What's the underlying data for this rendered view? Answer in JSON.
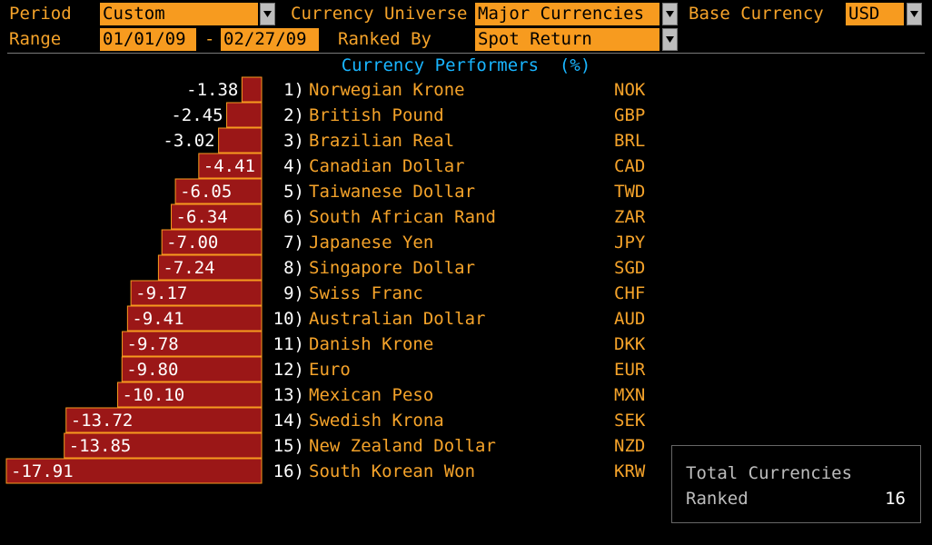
{
  "header": {
    "period_label": "Period",
    "period_value": "Custom",
    "universe_label": "Currency Universe",
    "universe_value": "Major Currencies",
    "base_label": "Base Currency",
    "base_value": "USD",
    "range_label": "Range",
    "range_start": "01/01/09",
    "range_sep": "-",
    "range_end": "02/27/09",
    "ranked_label": "Ranked By",
    "ranked_value": "Spot Return"
  },
  "chart_title": "Currency Performers  (%)",
  "colors": {
    "bar_fill": "#9b1717",
    "bar_outline": "#f79b1f",
    "accent": "#f5a32a",
    "title": "#19b5ff"
  },
  "chart_data": {
    "type": "bar",
    "orientation": "horizontal",
    "title": "Currency Performers  (%)",
    "categories": [
      "NOK",
      "GBP",
      "BRL",
      "CAD",
      "TWD",
      "ZAR",
      "JPY",
      "SGD",
      "CHF",
      "AUD",
      "DKK",
      "EUR",
      "MXN",
      "SEK",
      "NZD",
      "KRW"
    ],
    "values": [
      -1.38,
      -2.45,
      -3.02,
      -4.41,
      -6.05,
      -6.34,
      -7.0,
      -7.24,
      -9.17,
      -9.41,
      -9.78,
      -9.8,
      -10.1,
      -13.72,
      -13.85,
      -17.91
    ],
    "value_labels": [
      "-1.38",
      "-2.45",
      "-3.02",
      "-4.41",
      "-6.05",
      "-6.34",
      "-7.00",
      "-7.24",
      "-9.17",
      "-9.41",
      "-9.78",
      "-9.80",
      "-10.10",
      "-13.72",
      "-13.85",
      "-17.91"
    ],
    "xlim": [
      -17.91,
      0
    ]
  },
  "rows": [
    {
      "rank": "1)",
      "name": "Norwegian Krone",
      "code": "NOK"
    },
    {
      "rank": "2)",
      "name": "British Pound",
      "code": "GBP"
    },
    {
      "rank": "3)",
      "name": "Brazilian Real",
      "code": "BRL"
    },
    {
      "rank": "4)",
      "name": "Canadian Dollar",
      "code": "CAD"
    },
    {
      "rank": "5)",
      "name": "Taiwanese Dollar",
      "code": "TWD"
    },
    {
      "rank": "6)",
      "name": "South African Rand",
      "code": "ZAR"
    },
    {
      "rank": "7)",
      "name": "Japanese Yen",
      "code": "JPY"
    },
    {
      "rank": "8)",
      "name": "Singapore Dollar",
      "code": "SGD"
    },
    {
      "rank": "9)",
      "name": "Swiss Franc",
      "code": "CHF"
    },
    {
      "rank": "10)",
      "name": "Australian Dollar",
      "code": "AUD"
    },
    {
      "rank": "11)",
      "name": "Danish Krone",
      "code": "DKK"
    },
    {
      "rank": "12)",
      "name": "Euro",
      "code": "EUR"
    },
    {
      "rank": "13)",
      "name": "Mexican Peso",
      "code": "MXN"
    },
    {
      "rank": "14)",
      "name": "Swedish Krona",
      "code": "SEK"
    },
    {
      "rank": "15)",
      "name": "New Zealand Dollar",
      "code": "NZD"
    },
    {
      "rank": "16)",
      "name": "South Korean Won",
      "code": "KRW"
    }
  ],
  "summary": {
    "line1": "Total Currencies",
    "line2": "Ranked",
    "value": "16"
  }
}
